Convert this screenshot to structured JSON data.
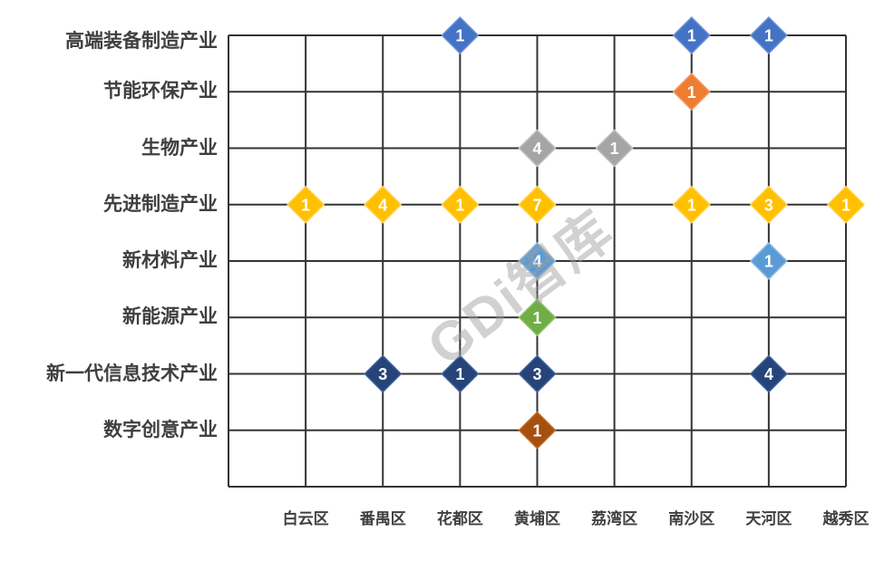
{
  "watermark": "GDi智库",
  "chart_data": {
    "type": "scatter",
    "marker_shape": "diamond",
    "title": "",
    "xlabel": "",
    "ylabel": "",
    "grid": true,
    "legend": "none",
    "gridline_color": "#333333",
    "label_color": "#3f3f3f",
    "background_color": "#ffffff",
    "x_categories": [
      "白云区",
      "番禺区",
      "花都区",
      "黄埔区",
      "荔湾区",
      "南沙区",
      "天河区",
      "越秀区"
    ],
    "y_categories": [
      "高端装备制造产业",
      "节能环保产业",
      "生物产业",
      "先进制造产业",
      "新材料产业",
      "新能源产业",
      "新一代信息技术产业",
      "数字创意产业"
    ],
    "series": [
      {
        "name": "高端装备制造产业",
        "color": "#4472C4",
        "border": "#6C94D8",
        "points": [
          {
            "x": "花都区",
            "value": 1
          },
          {
            "x": "南沙区",
            "value": 1
          },
          {
            "x": "天河区",
            "value": 1
          }
        ]
      },
      {
        "name": "节能环保产业",
        "color": "#ED7D31",
        "border": "#F19B63",
        "points": [
          {
            "x": "南沙区",
            "value": 1
          }
        ]
      },
      {
        "name": "生物产业",
        "color": "#A5A5A5",
        "border": "#C0C0C0",
        "points": [
          {
            "x": "黄埔区",
            "value": 4
          },
          {
            "x": "荔湾区",
            "value": 1
          }
        ]
      },
      {
        "name": "先进制造产业",
        "color": "#FFC000",
        "border": "#FFD24D",
        "points": [
          {
            "x": "白云区",
            "value": 1
          },
          {
            "x": "番禺区",
            "value": 4
          },
          {
            "x": "花都区",
            "value": 1
          },
          {
            "x": "黄埔区",
            "value": 7
          },
          {
            "x": "南沙区",
            "value": 1
          },
          {
            "x": "天河区",
            "value": 3
          },
          {
            "x": "越秀区",
            "value": 1
          }
        ]
      },
      {
        "name": "新材料产业",
        "color": "#5B9BD5",
        "border": "#8FBCE4",
        "points": [
          {
            "x": "黄埔区",
            "value": 4
          },
          {
            "x": "天河区",
            "value": 1
          }
        ]
      },
      {
        "name": "新能源产业",
        "color": "#70AD47",
        "border": "#93C46F",
        "points": [
          {
            "x": "黄埔区",
            "value": 1
          }
        ]
      },
      {
        "name": "新一代信息技术产业",
        "color": "#264478",
        "border": "#3E62A3",
        "points": [
          {
            "x": "番禺区",
            "value": 3
          },
          {
            "x": "花都区",
            "value": 1
          },
          {
            "x": "黄埔区",
            "value": 3
          },
          {
            "x": "天河区",
            "value": 4
          }
        ]
      },
      {
        "name": "数字创意产业",
        "color": "#A5500F",
        "border": "#C46A1E",
        "points": [
          {
            "x": "黄埔区",
            "value": 1
          }
        ]
      }
    ]
  }
}
